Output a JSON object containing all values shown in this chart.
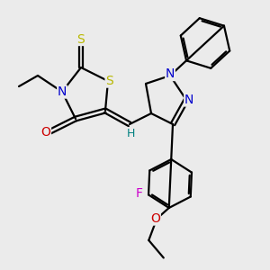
{
  "bg_color": "#ebebeb",
  "bond_color": "#000000",
  "atom_colors": {
    "S_thioxo": "#b8b800",
    "S_thia": "#b8b800",
    "N": "#0000cc",
    "O": "#cc0000",
    "F": "#cc00cc",
    "O_ether": "#cc0000",
    "H": "#008080",
    "C": "#000000"
  },
  "line_width": 1.6,
  "figsize": [
    3.0,
    3.0
  ],
  "dpi": 100
}
